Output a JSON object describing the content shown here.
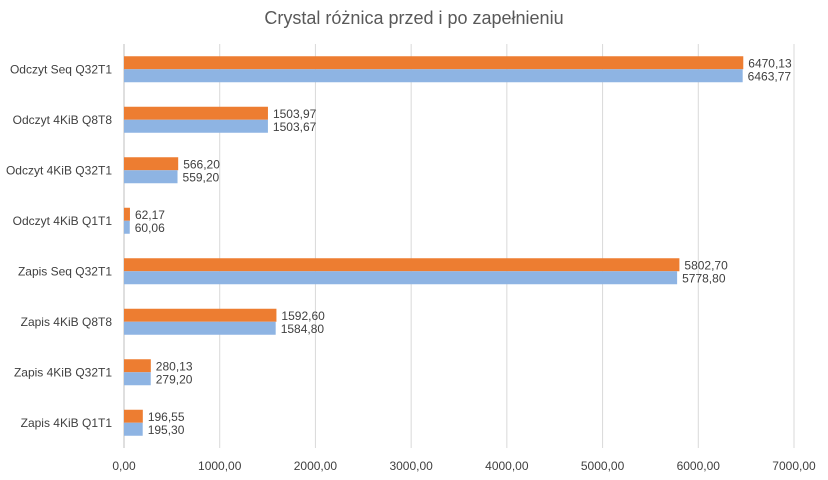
{
  "chart_data": {
    "type": "bar",
    "orientation": "horizontal",
    "title": "Crystal różnica przed i po zapełnieniu",
    "categories": [
      "Odczyt Seq Q32T1",
      "Odczyt 4KiB Q8T8",
      "Odczyt 4KiB Q32T1",
      "Odczyt 4KiB Q1T1",
      "Zapis Seq Q32T1",
      "Zapis 4KiB Q8T8",
      "Zapis 4KiB Q32T1",
      "Zapis 4KiB Q1T1"
    ],
    "series": [
      {
        "color": "#ED7D31",
        "values": [
          6470.13,
          1503.97,
          566.2,
          62.17,
          5802.7,
          1592.6,
          280.13,
          196.55
        ],
        "labels": [
          "6470,13",
          "1503,97",
          "566,20",
          "62,17",
          "5802,70",
          "1592,60",
          "280,13",
          "196,55"
        ]
      },
      {
        "color": "#8EB4E3",
        "values": [
          6463.77,
          1503.67,
          559.2,
          60.06,
          5778.8,
          1584.8,
          279.2,
          195.3
        ],
        "labels": [
          "6463,77",
          "1503,67",
          "559,20",
          "60,06",
          "5778,80",
          "1584,80",
          "279,20",
          "195,30"
        ]
      }
    ],
    "xlim": [
      0,
      7000
    ],
    "xticks": [
      0,
      1000,
      2000,
      3000,
      4000,
      5000,
      6000,
      7000
    ],
    "xtick_labels": [
      "0,00",
      "1000,00",
      "2000,00",
      "3000,00",
      "4000,00",
      "5000,00",
      "6000,00",
      "7000,00"
    ],
    "grid": "vertical",
    "legend": "none"
  }
}
